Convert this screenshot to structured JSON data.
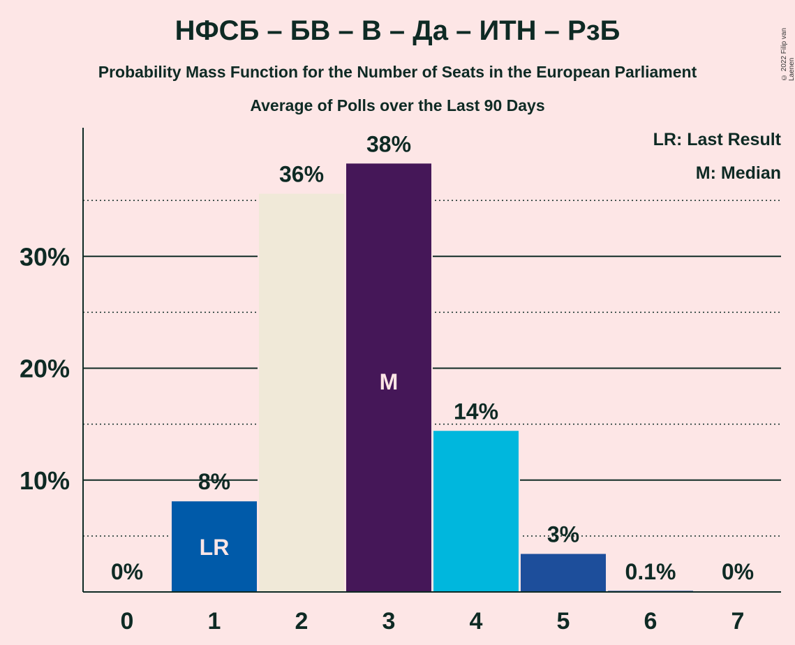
{
  "header": {
    "title": "НФСБ – БВ – В – Да – ИТН – РзБ",
    "subtitle": "Probability Mass Function for the Number of Seats in the European Parliament",
    "subtitle2": "Average of Polls over the Last 90 Days",
    "copyright": "© 2022 Filip van Laenen"
  },
  "legend": {
    "last_result": "LR: Last Result",
    "median": "M: Median"
  },
  "chart_data": {
    "type": "bar",
    "title": "НФСБ – БВ – В – Да – ИТН – РзБ",
    "categories": [
      "0",
      "1",
      "2",
      "3",
      "4",
      "5",
      "6",
      "7"
    ],
    "values": [
      0,
      8.1,
      35.6,
      38.3,
      14.4,
      3.4,
      0.1,
      0
    ],
    "value_labels": [
      "0%",
      "8%",
      "36%",
      "38%",
      "14%",
      "3%",
      "0.1%",
      "0%"
    ],
    "bar_colors": [
      "#1a5fb4",
      "#005aa9",
      "#f0e9d8",
      "#451758",
      "#00b7dd",
      "#1d4e9b",
      "#1d4e9b",
      "#1d4e9b"
    ],
    "bar_markers": [
      "",
      "LR",
      "",
      "M",
      "",
      "",
      "",
      ""
    ],
    "ylim": [
      0,
      41.5
    ],
    "yticks": [
      10,
      20,
      30
    ],
    "ytick_labels": [
      "10%",
      "20%",
      "30%"
    ],
    "minor_gridlines": [
      5,
      15,
      25,
      35
    ],
    "xlabel": "",
    "ylabel": ""
  }
}
